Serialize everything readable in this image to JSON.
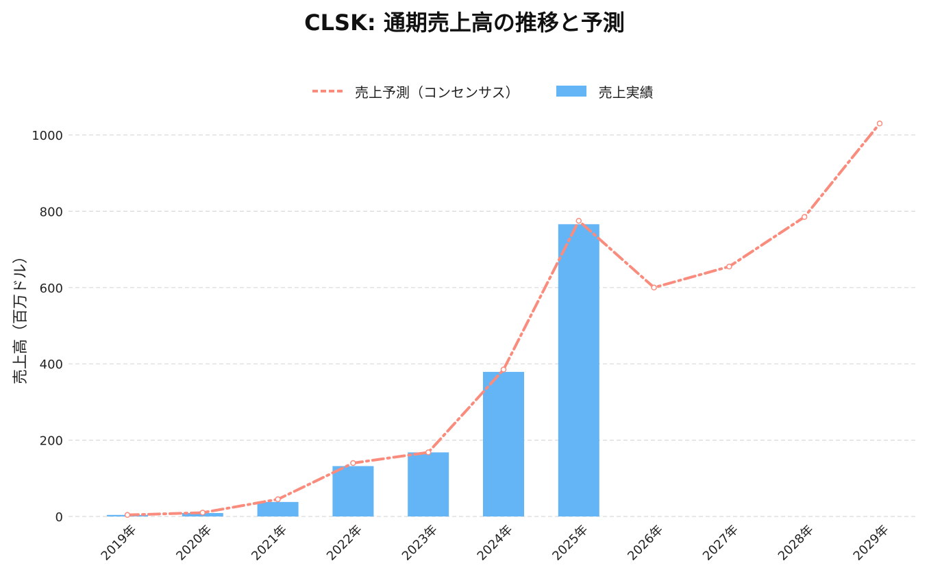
{
  "chart_data": {
    "type": "bar",
    "title": "CLSK: 通期売上高の推移と予測",
    "ylabel": "売上高（百万ドル）",
    "xlabel": "",
    "categories": [
      "2019年",
      "2020年",
      "2021年",
      "2022年",
      "2023年",
      "2024年",
      "2025年",
      "2026年",
      "2027年",
      "2028年",
      "2029年"
    ],
    "yticks": [
      0,
      200,
      400,
      600,
      800,
      1000
    ],
    "ylim": [
      0,
      1050
    ],
    "grid": true,
    "legend_position": "top-center",
    "series": [
      {
        "name": "売上予測（コンセンサス）",
        "type": "line",
        "style": "dash-dot",
        "color": "#fa8c7e",
        "values": [
          4,
          10,
          45,
          140,
          168,
          385,
          775,
          600,
          655,
          785,
          1030
        ]
      },
      {
        "name": "売上実績",
        "type": "bar",
        "color": "#64b5f6",
        "values": [
          4,
          9,
          38,
          132,
          168,
          379,
          766,
          null,
          null,
          null,
          null
        ]
      }
    ]
  }
}
